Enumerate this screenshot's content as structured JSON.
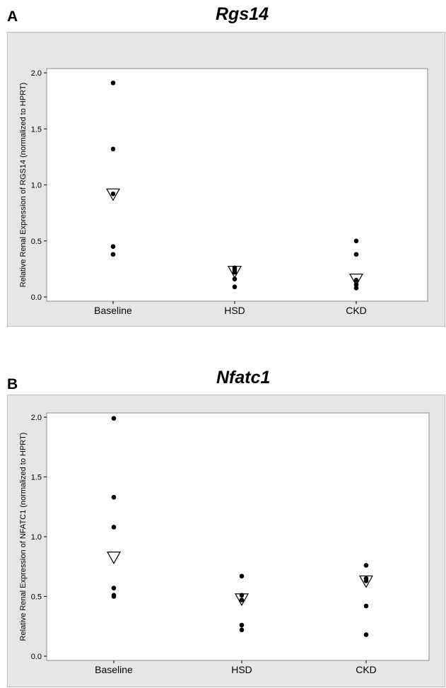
{
  "panels": [
    {
      "letter": "A",
      "title": "Rgs14"
    },
    {
      "letter": "B",
      "title": "Nfatc1"
    }
  ],
  "chart_data": [
    {
      "type": "scatter",
      "title": "Rgs14",
      "ylabel": "Relative Renal Expression of RGS14 (normalized to HPRT)",
      "categories": [
        "Baseline",
        "HSD",
        "CKD"
      ],
      "ylim": [
        0.0,
        2.0
      ],
      "yticks": [
        "0.0",
        "0.5",
        "1.0",
        "1.5",
        "2.0"
      ],
      "points": [
        [
          1.91,
          1.32,
          0.92,
          0.45,
          0.38
        ],
        [
          0.26,
          0.24,
          0.22,
          0.16,
          0.09
        ],
        [
          0.5,
          0.38,
          0.15,
          0.11,
          0.08
        ]
      ],
      "means": [
        0.92,
        0.23,
        0.16
      ],
      "legend": "none",
      "grid": false
    },
    {
      "type": "scatter",
      "title": "Nfatc1",
      "ylabel": "Relative Renal Expression of NFATC1  (normalized to HPRT)",
      "categories": [
        "Baseline",
        "HSD",
        "CKD"
      ],
      "ylim": [
        0.0,
        2.0
      ],
      "yticks": [
        "0.0",
        "0.5",
        "1.0",
        "1.5",
        "2.0"
      ],
      "points": [
        [
          1.99,
          1.33,
          1.08,
          0.57,
          0.51,
          0.5
        ],
        [
          0.67,
          0.51,
          0.47,
          0.26,
          0.22
        ],
        [
          0.76,
          0.65,
          0.63,
          0.42,
          0.18
        ]
      ],
      "means": [
        0.83,
        0.48,
        0.63
      ],
      "legend": "none",
      "grid": false
    }
  ]
}
